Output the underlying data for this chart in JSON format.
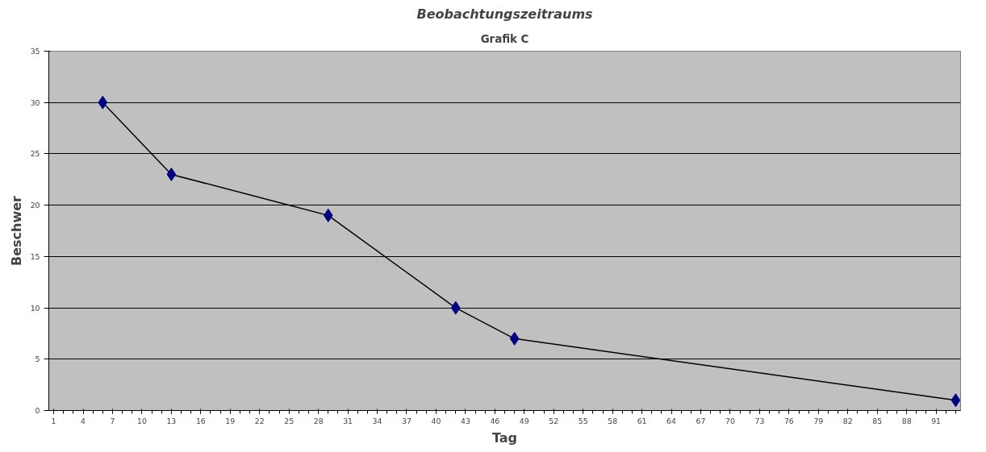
{
  "chart_data": {
    "type": "line",
    "title": "Grafik C",
    "xlabel": "Tag",
    "ylabel": "Beschwer",
    "annotations": [
      "Beobachtungszeitraums"
    ],
    "x": [
      6,
      13,
      29,
      42,
      48,
      93
    ],
    "series": [
      {
        "color": "#000080",
        "values": [
          30,
          23,
          19,
          10,
          7,
          1
        ]
      }
    ],
    "xlim": [
      0.5,
      93.5
    ],
    "xticks": [
      1,
      4,
      7,
      10,
      13,
      16,
      19,
      22,
      25,
      28,
      31,
      34,
      37,
      40,
      43,
      46,
      49,
      52,
      55,
      58,
      61,
      64,
      67,
      70,
      73,
      76,
      79,
      82,
      85,
      88,
      91
    ],
    "ylim": [
      0,
      35
    ],
    "yticks": [
      0,
      5,
      10,
      15,
      20,
      25,
      30,
      35
    ],
    "grid": "y",
    "marker": "diamond",
    "line_style": "solid"
  }
}
